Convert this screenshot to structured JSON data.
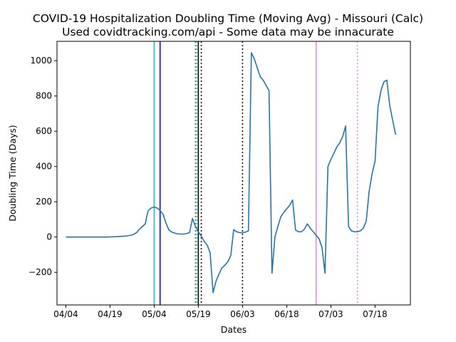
{
  "chart_data": {
    "type": "line",
    "title": "COVID-19 Hospitalization Doubling Time (Moving Avg) - Missouri (Calc)",
    "subtitle": "Used covidtracking.com/api - Some data may be innacurate",
    "xlabel": "Dates",
    "ylabel": "Doubling Time (Days)",
    "x_axis_type": "date",
    "x_range": [
      "2020-04-01",
      "2020-07-30"
    ],
    "ylim": [
      -385,
      1110
    ],
    "x_ticks": [
      {
        "date": "2020-04-04",
        "label": "04/04"
      },
      {
        "date": "2020-04-19",
        "label": "04/19"
      },
      {
        "date": "2020-05-04",
        "label": "05/04"
      },
      {
        "date": "2020-05-19",
        "label": "05/19"
      },
      {
        "date": "2020-06-03",
        "label": "06/03"
      },
      {
        "date": "2020-06-18",
        "label": "06/18"
      },
      {
        "date": "2020-07-03",
        "label": "07/03"
      },
      {
        "date": "2020-07-18",
        "label": "07/18"
      }
    ],
    "y_ticks": [
      -200,
      0,
      200,
      400,
      600,
      800,
      1000
    ],
    "grid": false,
    "series": [
      {
        "color": "#1f77b4",
        "points": [
          [
            "2020-04-04",
            0
          ],
          [
            "2020-04-10",
            0
          ],
          [
            "2020-04-18",
            0
          ],
          [
            "2020-04-21",
            2
          ],
          [
            "2020-04-24",
            5
          ],
          [
            "2020-04-26",
            10
          ],
          [
            "2020-04-27",
            15
          ],
          [
            "2020-04-28",
            25
          ],
          [
            "2020-04-29",
            45
          ],
          [
            "2020-04-30",
            60
          ],
          [
            "2020-05-01",
            75
          ],
          [
            "2020-05-01T12:00",
            120
          ],
          [
            "2020-05-02",
            150
          ],
          [
            "2020-05-03",
            165
          ],
          [
            "2020-05-04",
            170
          ],
          [
            "2020-05-05",
            165
          ],
          [
            "2020-05-06",
            150
          ],
          [
            "2020-05-07",
            130
          ],
          [
            "2020-05-08",
            80
          ],
          [
            "2020-05-09",
            40
          ],
          [
            "2020-05-10",
            28
          ],
          [
            "2020-05-11",
            22
          ],
          [
            "2020-05-12",
            18
          ],
          [
            "2020-05-13",
            17
          ],
          [
            "2020-05-14",
            17
          ],
          [
            "2020-05-15",
            20
          ],
          [
            "2020-05-16",
            25
          ],
          [
            "2020-05-17",
            105
          ],
          [
            "2020-05-18",
            60
          ],
          [
            "2020-05-19",
            30
          ],
          [
            "2020-05-20",
            5
          ],
          [
            "2020-05-21",
            -25
          ],
          [
            "2020-05-22",
            -45
          ],
          [
            "2020-05-23",
            -90
          ],
          [
            "2020-05-24",
            -315
          ],
          [
            "2020-05-25",
            -250
          ],
          [
            "2020-05-26",
            -210
          ],
          [
            "2020-05-27",
            -175
          ],
          [
            "2020-05-28",
            -160
          ],
          [
            "2020-05-29",
            -140
          ],
          [
            "2020-05-30",
            -105
          ],
          [
            "2020-05-31",
            42
          ],
          [
            "2020-06-01",
            30
          ],
          [
            "2020-06-02",
            25
          ],
          [
            "2020-06-03",
            25
          ],
          [
            "2020-06-04",
            28
          ],
          [
            "2020-06-05",
            35
          ],
          [
            "2020-06-06",
            1045
          ],
          [
            "2020-06-07",
            1010
          ],
          [
            "2020-06-08",
            960
          ],
          [
            "2020-06-09",
            910
          ],
          [
            "2020-06-10",
            890
          ],
          [
            "2020-06-11",
            860
          ],
          [
            "2020-06-12",
            830
          ],
          [
            "2020-06-13",
            -205
          ],
          [
            "2020-06-14",
            0
          ],
          [
            "2020-06-15",
            60
          ],
          [
            "2020-06-16",
            115
          ],
          [
            "2020-06-17",
            140
          ],
          [
            "2020-06-18",
            160
          ],
          [
            "2020-06-19",
            180
          ],
          [
            "2020-06-20",
            210
          ],
          [
            "2020-06-21",
            40
          ],
          [
            "2020-06-22",
            30
          ],
          [
            "2020-06-23",
            30
          ],
          [
            "2020-06-24",
            45
          ],
          [
            "2020-06-25",
            75
          ],
          [
            "2020-06-26",
            50
          ],
          [
            "2020-06-27",
            30
          ],
          [
            "2020-06-28",
            10
          ],
          [
            "2020-06-29",
            -10
          ],
          [
            "2020-06-30",
            -60
          ],
          [
            "2020-07-01",
            -205
          ],
          [
            "2020-07-02",
            400
          ],
          [
            "2020-07-03",
            440
          ],
          [
            "2020-07-04",
            475
          ],
          [
            "2020-07-05",
            510
          ],
          [
            "2020-07-06",
            535
          ],
          [
            "2020-07-07",
            570
          ],
          [
            "2020-07-08",
            630
          ],
          [
            "2020-07-09",
            60
          ],
          [
            "2020-07-10",
            35
          ],
          [
            "2020-07-11",
            30
          ],
          [
            "2020-07-12",
            30
          ],
          [
            "2020-07-13",
            35
          ],
          [
            "2020-07-14",
            50
          ],
          [
            "2020-07-15",
            90
          ],
          [
            "2020-07-16",
            260
          ],
          [
            "2020-07-17",
            360
          ],
          [
            "2020-07-18",
            430
          ],
          [
            "2020-07-19",
            740
          ],
          [
            "2020-07-20",
            830
          ],
          [
            "2020-07-21",
            880
          ],
          [
            "2020-07-22",
            890
          ],
          [
            "2020-07-23",
            745
          ],
          [
            "2020-07-24",
            660
          ],
          [
            "2020-07-25",
            580
          ]
        ]
      }
    ],
    "vertical_lines": [
      {
        "date": "2020-05-04",
        "color": "#17becf",
        "style": "solid"
      },
      {
        "date": "2020-05-06",
        "color": "#0000cc",
        "style": "solid"
      },
      {
        "date": "2020-05-18",
        "color": "#2ca02c",
        "style": "dotted"
      },
      {
        "date": "2020-05-18T12:00",
        "color": "#17becf",
        "style": "dotted"
      },
      {
        "date": "2020-05-19",
        "color": "#000000",
        "style": "solid"
      },
      {
        "date": "2020-05-20",
        "color": "#000000",
        "style": "dotted"
      },
      {
        "date": "2020-06-03",
        "color": "#000000",
        "style": "dotted"
      },
      {
        "date": "2020-06-28",
        "color": "#ee82ee",
        "style": "solid"
      },
      {
        "date": "2020-07-12",
        "color": "#ee82ee",
        "style": "dotted"
      }
    ]
  }
}
